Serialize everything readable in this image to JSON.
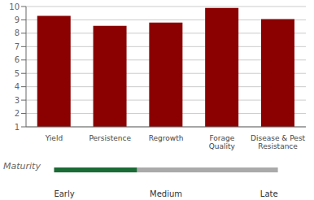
{
  "chart_data": {
    "type": "bar",
    "categories": [
      "Yield",
      "Persistence",
      "Regrowth",
      "Forage\nQuality",
      "Disease & Pest\nResistance"
    ],
    "values": [
      9.3,
      8.55,
      8.8,
      9.9,
      9.05
    ],
    "color": "#8B0000",
    "ylim": [
      1,
      10
    ],
    "yticks": [
      1,
      2,
      3,
      4,
      5,
      6,
      7,
      8,
      9,
      10
    ],
    "grid": true,
    "maturity": {
      "label": "Maturity",
      "levels": [
        "Early",
        "Medium",
        "Late"
      ],
      "value": 0.37,
      "color": "#1a6b35"
    }
  }
}
